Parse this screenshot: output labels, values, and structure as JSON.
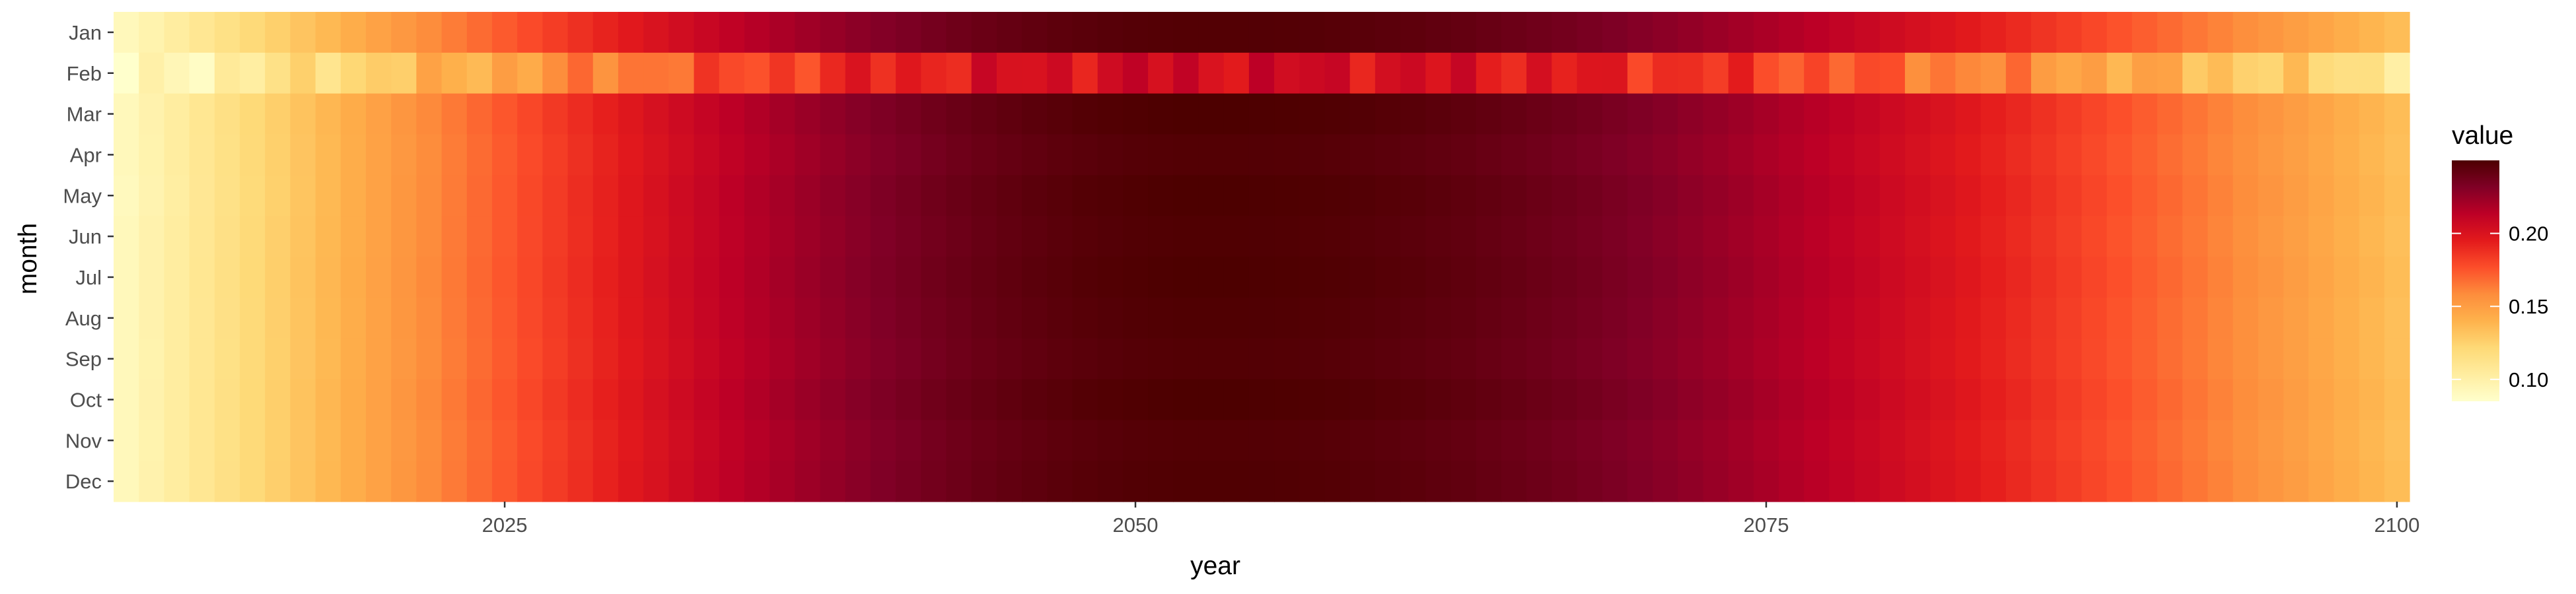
{
  "chart_data": {
    "type": "heatmap",
    "xlabel": "year",
    "ylabel": "month",
    "x_range": [
      2010,
      2100
    ],
    "x_ticks": [
      "2025",
      "2050",
      "2075",
      "2100"
    ],
    "months": [
      "Jan",
      "Feb",
      "Mar",
      "Apr",
      "May",
      "Jun",
      "Jul",
      "Aug",
      "Sep",
      "Oct",
      "Nov",
      "Dec"
    ],
    "legend": {
      "title": "value",
      "min": 0.085,
      "max": 0.25,
      "ticks": [
        "0.10",
        "0.15",
        "0.20"
      ],
      "placement": "right"
    },
    "color_scale": [
      "#ffffcc",
      "#ffeda0",
      "#fed976",
      "#feb24c",
      "#fd8d3c",
      "#fc4e2a",
      "#e31a1c",
      "#bd0026",
      "#800026",
      "#4d0000"
    ],
    "series_profile": {
      "peak_year": 2053,
      "month_peak_values": [
        0.248,
        0.205,
        0.25,
        0.248,
        0.25,
        0.249,
        0.25,
        0.249,
        0.248,
        0.25,
        0.248,
        0.249
      ],
      "month_start_values": [
        0.092,
        0.085,
        0.092,
        0.092,
        0.091,
        0.092,
        0.092,
        0.092,
        0.092,
        0.092,
        0.092,
        0.092
      ],
      "month_end_values": [
        0.135,
        0.112,
        0.135,
        0.134,
        0.135,
        0.134,
        0.135,
        0.134,
        0.134,
        0.135,
        0.134,
        0.135
      ]
    }
  }
}
